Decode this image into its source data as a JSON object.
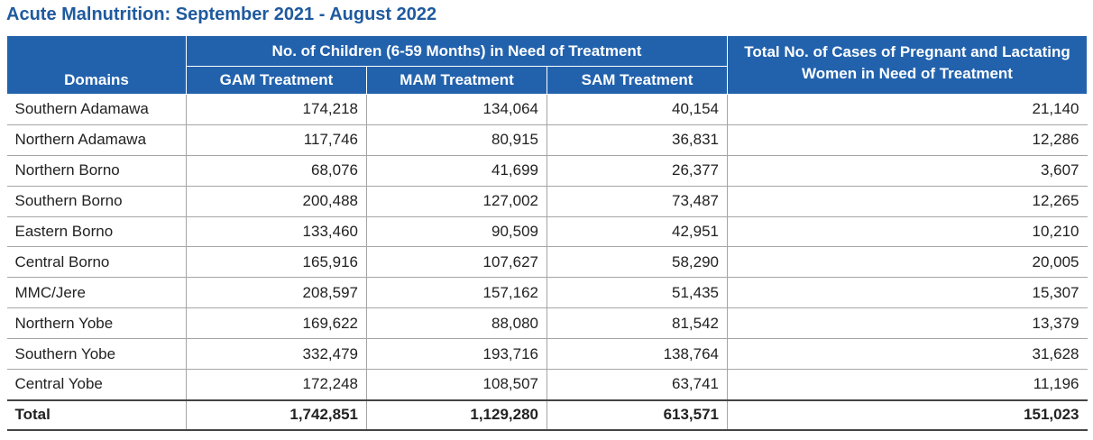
{
  "title": "Acute Malnutrition: September 2021 - August 2022",
  "header": {
    "domains": "Domains",
    "children_group": "No. of Children (6-59 Months) in Need of Treatment",
    "gam": "GAM Treatment",
    "mam": "MAM Treatment",
    "sam": "SAM Treatment",
    "women": "Total No. of Cases of Pregnant and Lactating Women in Need of Treatment"
  },
  "chart_data": {
    "type": "table",
    "title": "Acute Malnutrition: September 2021 - August 2022",
    "columns": [
      "Domains",
      "GAM Treatment",
      "MAM Treatment",
      "SAM Treatment",
      "Total No. of Cases of Pregnant and Lactating Women in Need of Treatment"
    ],
    "rows": [
      [
        "Southern Adamawa",
        "174,218",
        "134,064",
        "40,154",
        "21,140"
      ],
      [
        "Northern Adamawa",
        "117,746",
        "80,915",
        "36,831",
        "12,286"
      ],
      [
        "Northern Borno",
        "68,076",
        "41,699",
        "26,377",
        "3,607"
      ],
      [
        "Southern Borno",
        "200,488",
        "127,002",
        "73,487",
        "12,265"
      ],
      [
        "Eastern Borno",
        "133,460",
        "90,509",
        "42,951",
        "10,210"
      ],
      [
        "Central Borno",
        "165,916",
        "107,627",
        "58,290",
        "20,005"
      ],
      [
        "MMC/Jere",
        "208,597",
        "157,162",
        "51,435",
        "15,307"
      ],
      [
        "Northern Yobe",
        "169,622",
        "88,080",
        "81,542",
        "13,379"
      ],
      [
        "Southern Yobe",
        "332,479",
        "193,716",
        "138,764",
        "31,628"
      ],
      [
        "Central Yobe",
        "172,248",
        "108,507",
        "63,741",
        "11,196"
      ]
    ],
    "total": [
      "Total",
      "1,742,851",
      "1,129,280",
      "613,571",
      "151,023"
    ]
  }
}
